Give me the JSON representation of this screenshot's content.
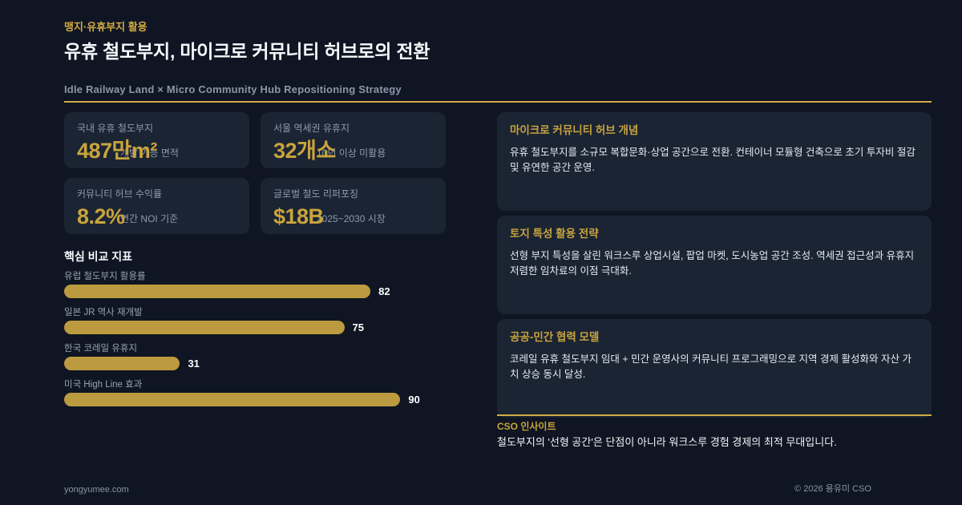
{
  "header": {
    "eyebrow": "맹지·유휴부지 활용",
    "title": "유휴 철도부지, 마이크로 커뮤니티 허브로의 전환",
    "subtitle": "Idle Railway Land × Micro Community Hub Repositioning Strategy"
  },
  "stats": [
    {
      "label": "국내 유휴 철도부지",
      "value": "487만m²",
      "sub": "개발 가능 면적"
    },
    {
      "label": "서울 역세권 유휴지",
      "value": "32개소",
      "sub": "10년 이상 미활용"
    },
    {
      "label": "커뮤니티 허브 수익률",
      "value": "8.2%",
      "sub": "연간 NOI 기준"
    },
    {
      "label": "글로벌 철도 리퍼포징",
      "value": "$18B",
      "sub": "2025~2030 시장"
    }
  ],
  "chart_data": {
    "type": "bar",
    "orientation": "horizontal",
    "title": "핵심 비교 지표",
    "categories": [
      "유럽 철도부지 활용률",
      "일본 JR 역사 재개발",
      "한국 코레일 유휴지",
      "미국 High Line 효과"
    ],
    "values": [
      82,
      75,
      31,
      90
    ],
    "xlim": [
      0,
      100
    ],
    "grid": false,
    "legend": false,
    "value_labels": true,
    "bar_color": "#BC9A3F"
  },
  "cards": [
    {
      "title": "마이크로 커뮤니티 허브 개념",
      "body": "유휴 철도부지를 소규모 복합문화·상업 공간으로 전환. 컨테이너 모듈형 건축으로 초기 투자비 절감 및 유연한 공간 운영."
    },
    {
      "title": "토지 특성 활용 전략",
      "body": "선형 부지 특성을 살린 워크스루 상업시설, 팝업 마켓, 도시농업 공간 조성. 역세권 접근성과 유휴지 저렴한 임차료의 이점 극대화."
    },
    {
      "title": "공공-민간 협력 모델",
      "body": "코레일 유휴 철도부지 임대 + 민간 운영사의 커뮤니티 프로그래밍으로 지역 경제 활성화와 자산 가치 상승 동시 달성."
    }
  ],
  "insight": {
    "label": "CSO 인사이트",
    "body": "철도부지의 '선형 공간'은 단점이 아니라 워크스루 경험 경제의 최적 무대입니다."
  },
  "footer": {
    "left": "yongyumee.com",
    "right": "© 2026 용유미 CSO"
  },
  "colors": {
    "background": "#0F1522",
    "card": "#1B2433",
    "accent_gold": "#D2AB42",
    "value_gold": "#C9A43C",
    "bar_gold": "#BC9A3F",
    "muted_text": "#8E99AC",
    "body_text": "#E6EAF1"
  }
}
